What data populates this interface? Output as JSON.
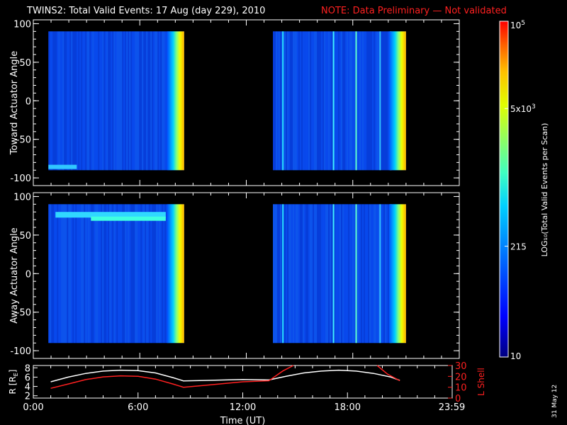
{
  "header": {
    "title": "TWINS2: Total Valid Events: 17 Aug (day 229), 2010",
    "note": "NOTE: Data Preliminary — Not validated",
    "note_color": "#ff2020"
  },
  "footer": {
    "date_stamp": "31 May 12"
  },
  "chart_data": [
    {
      "type": "heatmap",
      "name": "toward",
      "ylabel": "Toward Actuator Angle",
      "xlim": [
        0,
        24
      ],
      "ylim": [
        -110,
        105
      ],
      "yticks": [
        "100",
        "50",
        "0",
        "-50",
        "-100"
      ],
      "ytick_values": [
        100,
        50,
        0,
        -50,
        -100
      ],
      "data_y_range": [
        -90,
        90
      ],
      "blocks": [
        {
          "start_hour": 0.85,
          "end_hour": 8.5
        },
        {
          "start_hour": 13.5,
          "end_hour": 21.0
        }
      ]
    },
    {
      "type": "heatmap",
      "name": "away",
      "ylabel": "Away Actuator Angle",
      "xlim": [
        0,
        24
      ],
      "ylim": [
        -110,
        105
      ],
      "yticks": [
        "100",
        "50",
        "0",
        "-50",
        "-100"
      ],
      "ytick_values": [
        100,
        50,
        0,
        -50,
        -100
      ],
      "data_y_range": [
        -90,
        90
      ],
      "blocks": [
        {
          "start_hour": 0.85,
          "end_hour": 8.5
        },
        {
          "start_hour": 13.5,
          "end_hour": 21.0
        }
      ]
    },
    {
      "type": "line",
      "name": "orbit",
      "ylabel_left": "R [R",
      "ylabel_left_sub": "E",
      "ylabel_left_close": "]",
      "ylabel_right": "L Shell",
      "xlabel": "Time (UT)",
      "xticks": [
        "0:00",
        "6:00",
        "12:00",
        "18:00",
        "23:59"
      ],
      "xtick_values": [
        0,
        6,
        12,
        18,
        23.98
      ],
      "ylim_left": [
        1.5,
        8.5
      ],
      "yticks_left": [
        "8",
        "6",
        "4",
        "2"
      ],
      "ytick_left_values": [
        8,
        6,
        4,
        2
      ],
      "ylim_right": [
        0,
        30
      ],
      "yticks_right": [
        "30",
        "20",
        "10",
        "0"
      ],
      "ytick_right_values": [
        30,
        20,
        10,
        0
      ],
      "series": [
        {
          "axis": "left",
          "color": "#ffffff",
          "x": [
            1,
            2,
            3,
            4,
            5,
            6,
            7,
            8,
            8.6,
            10,
            12,
            13.5,
            14.5,
            15.5,
            16.5,
            17.5,
            18.5,
            19.5,
            20.5,
            21
          ],
          "y": [
            5.0,
            6.0,
            6.8,
            7.3,
            7.5,
            7.4,
            6.9,
            5.9,
            5.2,
            5.3,
            5.5,
            5.4,
            6.2,
            6.9,
            7.3,
            7.5,
            7.3,
            6.8,
            6.0,
            5.3
          ]
        },
        {
          "axis": "right",
          "color": "#ff2020",
          "x": [
            1,
            2,
            3,
            4,
            5,
            6,
            7,
            8,
            8.6,
            10,
            12,
            13.5,
            14.3,
            14.9
          ],
          "y": [
            9,
            13,
            17,
            19.5,
            20.5,
            20,
            17.5,
            13,
            10,
            12,
            15,
            16,
            25,
            31
          ]
        },
        {
          "axis": "right",
          "color": "#ff2020",
          "x": [
            19.7,
            20.3,
            21
          ],
          "y": [
            31,
            22,
            16
          ]
        }
      ]
    }
  ],
  "colorbar": {
    "label": "LOG₁₀(Total Valid Events per Scan)",
    "ticks": [
      {
        "text": "10",
        "sup": "5",
        "frac": 1.0
      },
      {
        "text": "5x10",
        "sup": "3",
        "frac": 0.74
      },
      {
        "text": "215",
        "sup": "",
        "frac": 0.33
      },
      {
        "text": "10",
        "sup": "",
        "frac": 0.0
      }
    ]
  },
  "colors": {
    "background": "#000000",
    "foreground": "#ffffff",
    "colormap": [
      "#000080",
      "#0000ff",
      "#0060ff",
      "#00c0ff",
      "#20ffd0",
      "#80ff60",
      "#e0ff00",
      "#ffb000",
      "#ff4000",
      "#ff0000"
    ]
  }
}
